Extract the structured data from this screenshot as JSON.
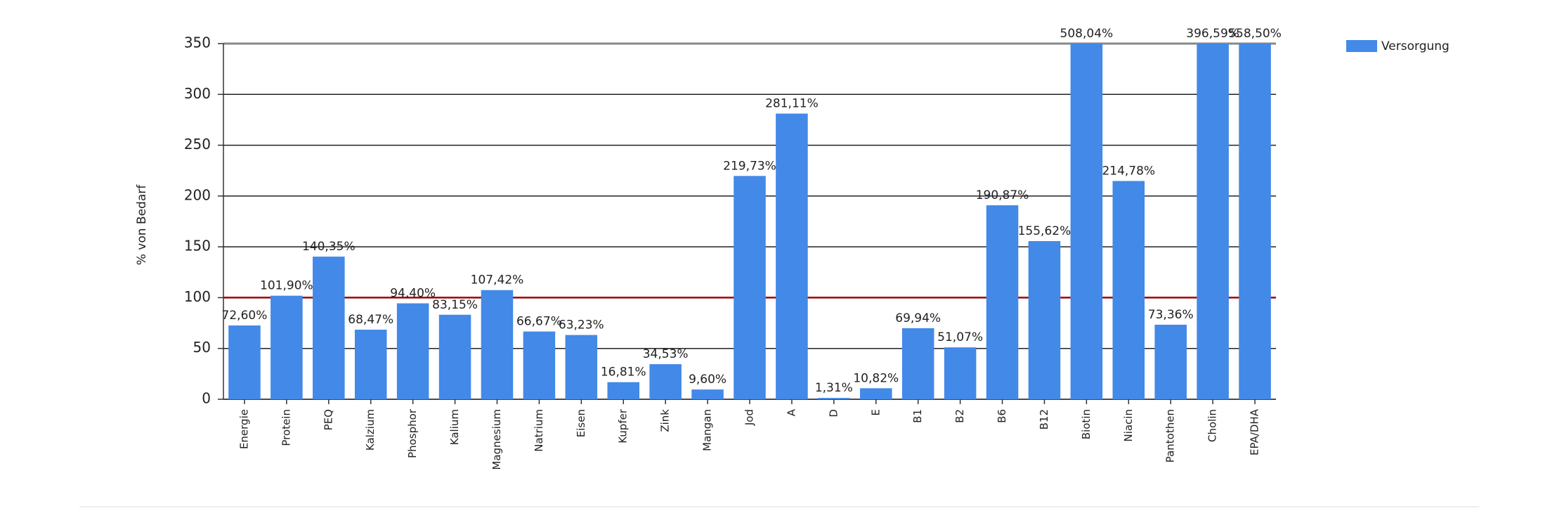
{
  "chart_data": {
    "type": "bar",
    "y_label": "% von Bedarf",
    "categories": [
      "Energie",
      "Protein",
      "PEQ",
      "Kalzium",
      "Phosphor",
      "Kalium",
      "Magnesium",
      "Natrium",
      "Eisen",
      "Kupfer",
      "Zink",
      "Mangan",
      "Jod",
      "A",
      "D",
      "E",
      "B1",
      "B2",
      "B6",
      "B12",
      "Biotin",
      "Niacin",
      "Pantothen",
      "Cholin",
      "EPA/DHA"
    ],
    "series": [
      {
        "name": "Versorgung",
        "color": "#4289e8",
        "values": [
          72.6,
          101.9,
          140.35,
          68.47,
          94.4,
          83.15,
          107.42,
          66.67,
          63.23,
          16.81,
          34.53,
          9.6,
          219.73,
          281.11,
          1.31,
          10.82,
          69.94,
          51.07,
          190.87,
          155.62,
          508.04,
          214.78,
          73.36,
          396.59,
          558.5
        ],
        "value_labels": [
          "72,60%",
          "101,90%",
          "140,35%",
          "68,47%",
          "94,40%",
          "83,15%",
          "107,42%",
          "66,67%",
          "63,23%",
          "16,81%",
          "34,53%",
          "9,60%",
          "219,73%",
          "281,11%",
          "1,31%",
          "10,82%",
          "69,94%",
          "51,07%",
          "190,87%",
          "155,62%",
          "508,04%",
          "214,78%",
          "73,36%",
          "396,59%",
          "558,50%"
        ]
      }
    ],
    "ylim": [
      0,
      350
    ],
    "yticks": [
      0,
      50,
      100,
      150,
      200,
      250,
      300,
      350
    ],
    "grid": true,
    "reference_line": {
      "value": 100,
      "color": "#a00000"
    },
    "legend": "top-right"
  }
}
